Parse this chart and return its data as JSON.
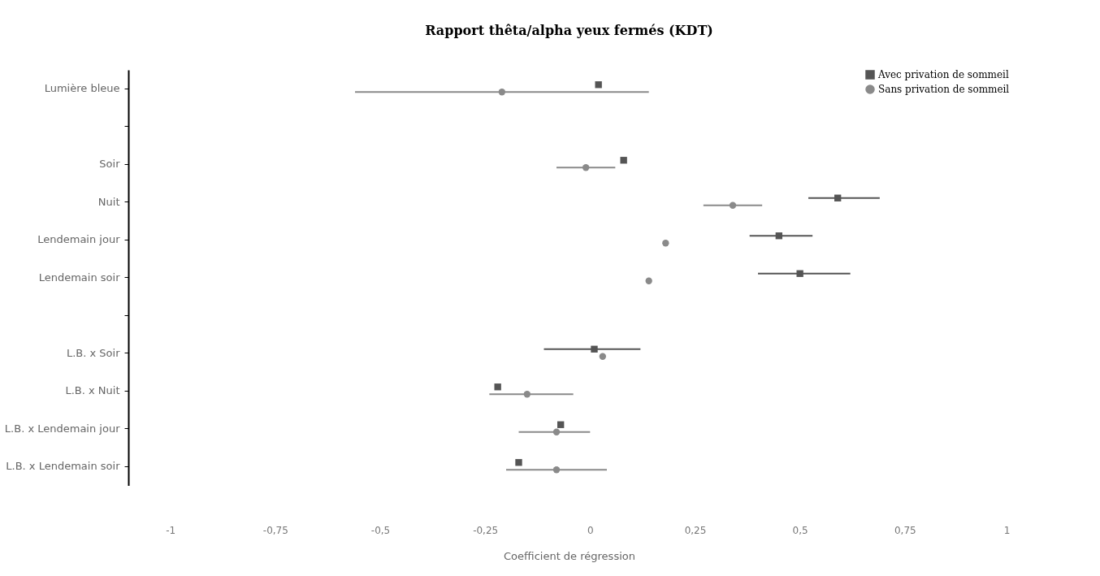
{
  "chart_data": {
    "type": "scatter",
    "orientation": "horizontal",
    "title": "Rapport thêta/alpha yeux fermés (KDT)",
    "xlabel": "Coefficient de régression",
    "categories": [
      "Lumière bleue",
      null,
      "Soir",
      "Nuit",
      "Lendemain jour",
      "Lendemain soir",
      null,
      "L.B. x Soir",
      "L.B. x Nuit",
      "L.B. x Lendemain jour",
      "L.B. x Lendemain soir"
    ],
    "series": [
      {
        "name": "Avec privation de sommeil",
        "color": "#555555",
        "marker": "square",
        "values": [
          0.02,
          null,
          0.08,
          0.59,
          0.45,
          0.5,
          null,
          0.01,
          -0.22,
          -0.07,
          -0.17
        ],
        "errors": [
          null,
          null,
          null,
          [
            0.52,
            0.69
          ],
          [
            0.38,
            0.53
          ],
          [
            0.4,
            0.62
          ],
          null,
          [
            -0.11,
            0.12
          ],
          null,
          null,
          null
        ]
      },
      {
        "name": "Sans privation de sommeil",
        "color": "#8a8a8a",
        "marker": "circle",
        "values": [
          -0.21,
          null,
          -0.01,
          0.34,
          0.18,
          0.14,
          null,
          0.03,
          -0.15,
          -0.08,
          -0.08
        ],
        "errors": [
          [
            -0.56,
            0.14
          ],
          null,
          [
            -0.08,
            0.06
          ],
          [
            0.27,
            0.41
          ],
          null,
          null,
          null,
          null,
          [
            -0.24,
            -0.04
          ],
          [
            -0.17,
            0.0
          ],
          [
            -0.2,
            0.04
          ]
        ]
      }
    ],
    "xlim": [
      -1.1,
      1
    ],
    "xticks": [
      -1,
      {
        "value": -0.75,
        "label": "-0,75"
      },
      {
        "value": -0.5,
        "label": "-0,5"
      },
      {
        "value": -0.25,
        "label": "-0,25"
      },
      0,
      {
        "value": 0.25,
        "label": "0,25"
      },
      {
        "value": 0.5,
        "label": "0,5"
      },
      {
        "value": 0.75,
        "label": "0,75"
      },
      1
    ],
    "grid": false,
    "legend": "top right"
  }
}
